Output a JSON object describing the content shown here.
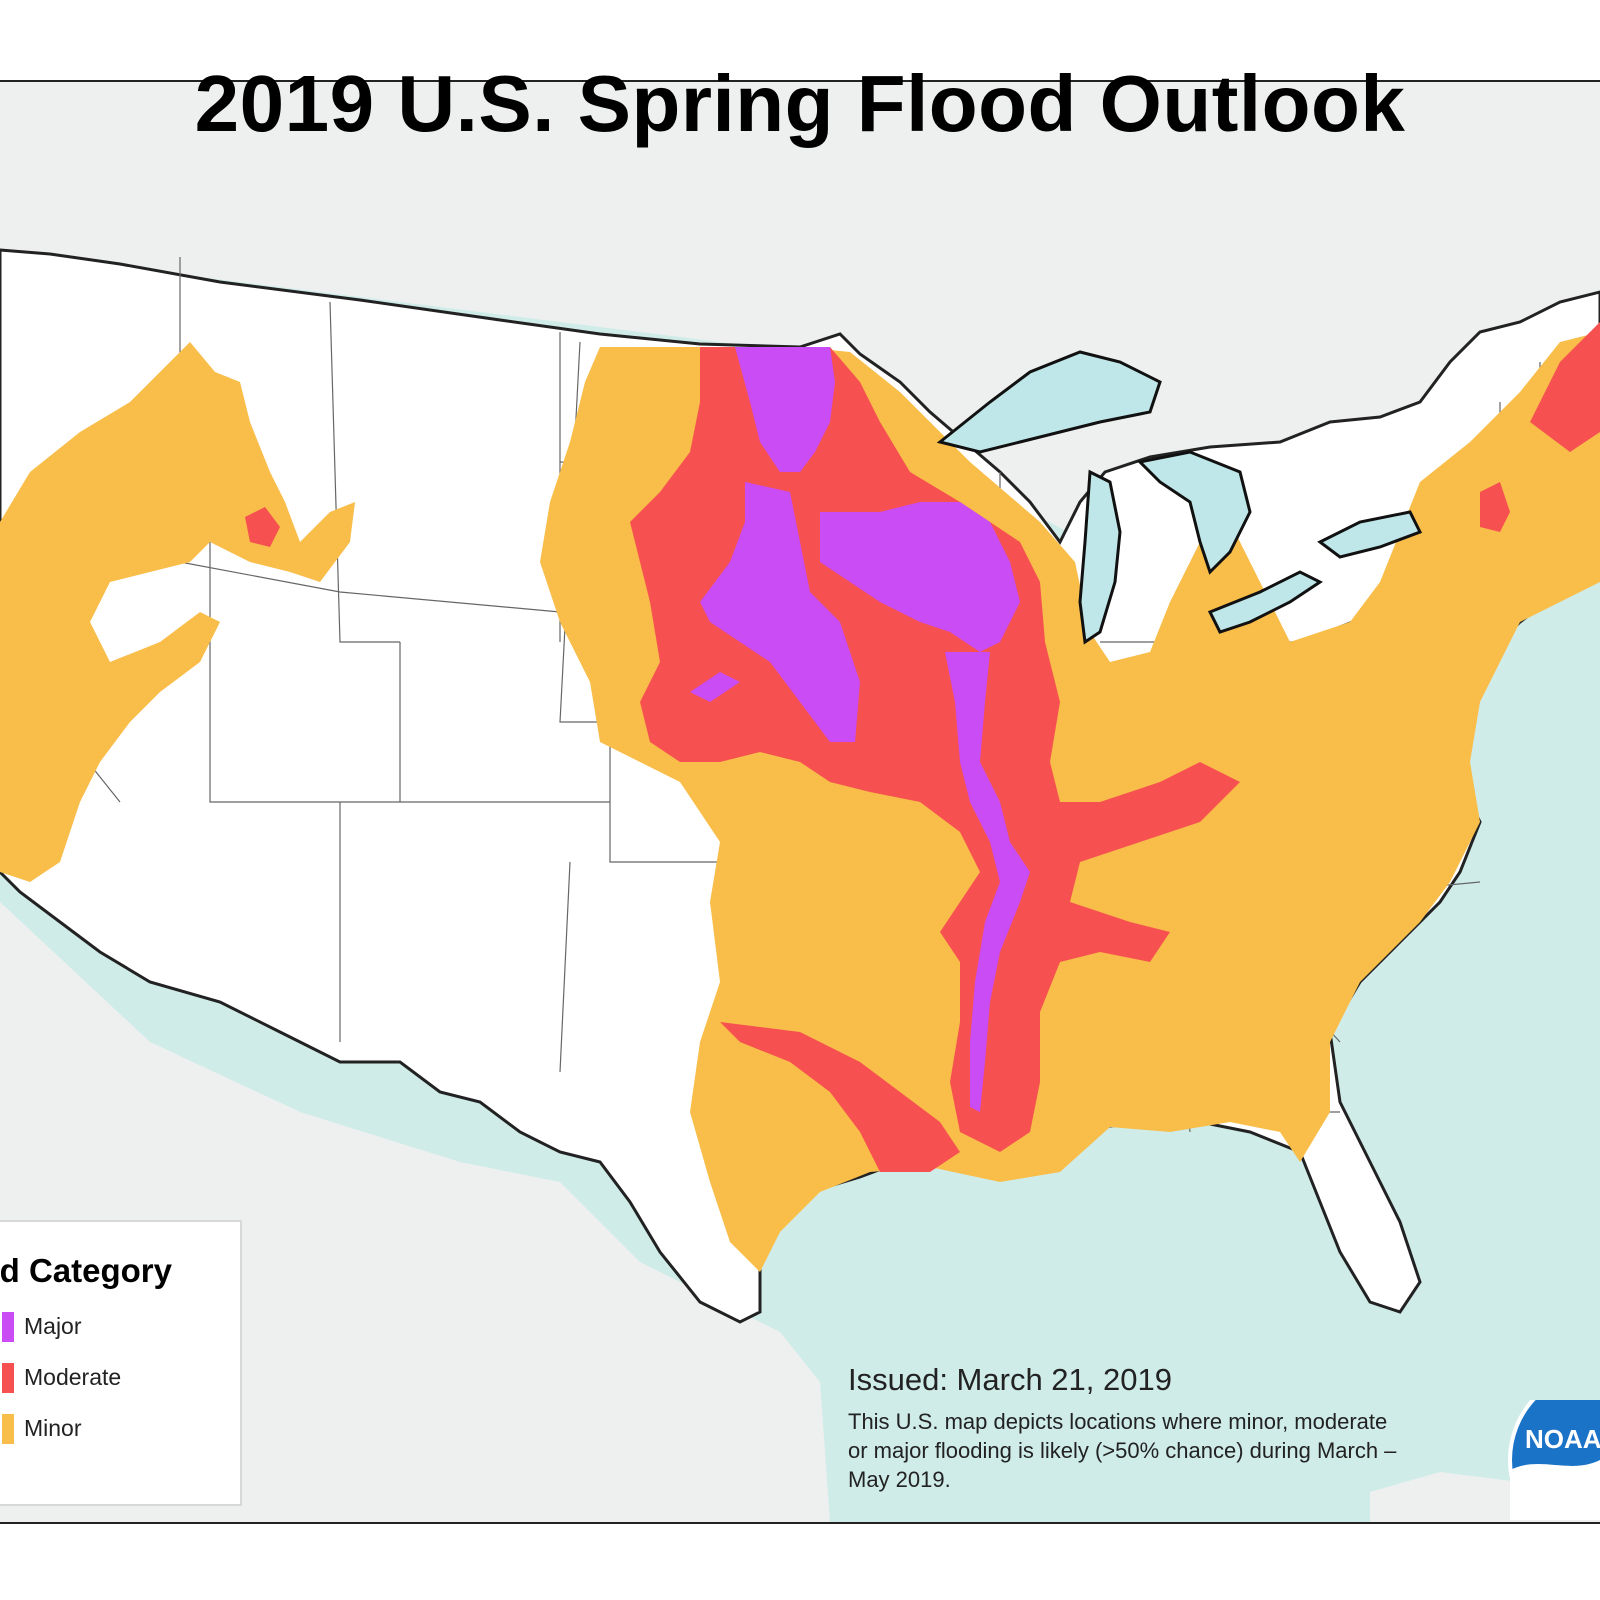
{
  "title": "2019 U.S. Spring Flood Outlook",
  "legend": {
    "title": "Flood Category",
    "items": [
      {
        "label": "Major",
        "color": "#c94cf5"
      },
      {
        "label": "Moderate",
        "color": "#f65050"
      },
      {
        "label": "Minor",
        "color": "#f9bd4a"
      }
    ]
  },
  "issued": "Issued:  March 21, 2019",
  "description": "This U.S. map depicts locations where minor, moderate or major flooding is likely (>50% chance) during March – May 2019.",
  "logo_text": "NOAA",
  "colors": {
    "ocean": "#cfece9",
    "lakes": "#bfe6e8",
    "land_outside": "#f0f1f1",
    "land_us": "#ffffff",
    "major": "#c94cf5",
    "moderate": "#f65050",
    "minor": "#f9bd4a",
    "logo_blue": "#1b73c7"
  }
}
